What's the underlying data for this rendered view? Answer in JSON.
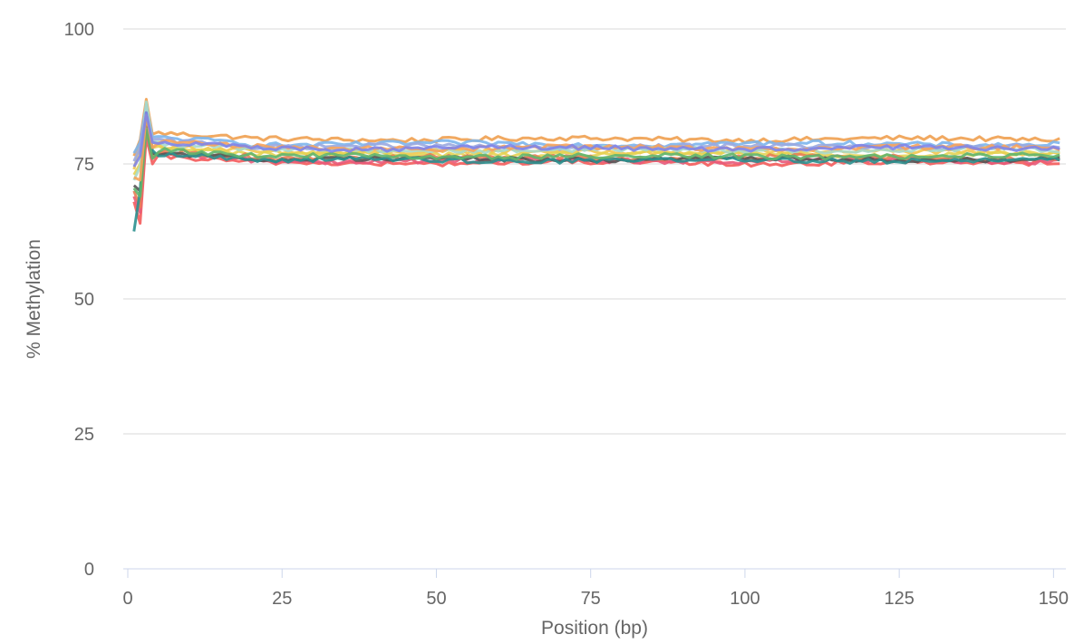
{
  "chart_data": {
    "type": "line",
    "title": "",
    "xlabel": "Position (bp)",
    "ylabel": "% Methylation",
    "xlim": [
      0,
      152
    ],
    "ylim": [
      0,
      100
    ],
    "x_ticks": [
      0,
      25,
      50,
      75,
      100,
      125,
      150
    ],
    "y_ticks": [
      0,
      25,
      50,
      75,
      100
    ],
    "grid": "horizontal",
    "legend": "none",
    "series": [
      {
        "color": "#f0a050",
        "start": [
          76.5,
          79.5,
          87.0,
          80.5
        ],
        "level": 79.6
      },
      {
        "color": "#f1c64f",
        "start": [
          74.0,
          78.5,
          85.0,
          79.0
        ],
        "level": 77.2
      },
      {
        "color": "#7cb5ec",
        "start": [
          77.0,
          79.0,
          86.0,
          80.0
        ],
        "level": 78.7
      },
      {
        "color": "#9aa8e0",
        "start": [
          75.5,
          78.0,
          85.5,
          79.5
        ],
        "level": 78.2
      },
      {
        "color": "#e4d354",
        "start": [
          73.0,
          75.0,
          84.0,
          78.0
        ],
        "level": 76.8
      },
      {
        "color": "#a7d9c9",
        "start": [
          72.0,
          74.5,
          86.5,
          79.0
        ],
        "level": 77.6
      },
      {
        "color": "#f45b5b",
        "start": [
          68.0,
          64.0,
          80.0,
          75.0
        ],
        "level": 75.2
      },
      {
        "color": "#e85a7a",
        "start": [
          69.0,
          66.0,
          81.0,
          76.0
        ],
        "level": 75.6
      },
      {
        "color": "#e87d54",
        "start": [
          70.0,
          67.0,
          82.5,
          76.5
        ],
        "level": 76.2
      },
      {
        "color": "#555555",
        "start": [
          71.0,
          70.0,
          83.0,
          77.0
        ],
        "level": 75.9
      },
      {
        "color": "#2b908f",
        "start": [
          62.5,
          70.0,
          84.5,
          77.5
        ],
        "level": 75.7
      },
      {
        "color": "#5fb56e",
        "start": [
          70.5,
          69.0,
          81.5,
          76.0
        ],
        "level": 76.4
      },
      {
        "color": "#f7a35c",
        "start": [
          72.5,
          72.0,
          84.0,
          78.0
        ],
        "level": 78.0
      },
      {
        "color": "#8085e9",
        "start": [
          74.5,
          76.5,
          84.5,
          79.0
        ],
        "level": 77.9
      }
    ]
  }
}
